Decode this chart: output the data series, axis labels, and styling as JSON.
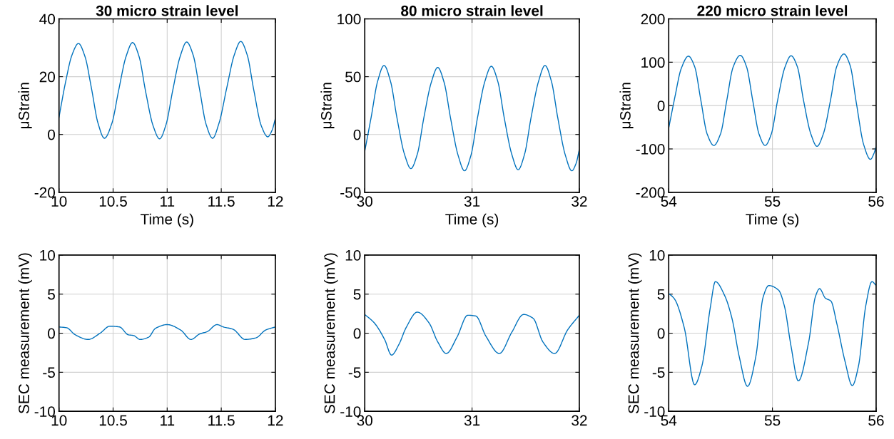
{
  "chart_data": [
    {
      "type": "line",
      "title": "30 micro strain level",
      "xlabel": "Time (s)",
      "ylabel": "μStrain",
      "xlim": [
        10,
        12
      ],
      "ylim": [
        -20,
        40
      ],
      "xticks": [
        10,
        10.5,
        11,
        11.5,
        12
      ],
      "yticks": [
        -20,
        0,
        20,
        40
      ],
      "grid": true,
      "series": [
        {
          "color": "#0072bd",
          "x": [
            10.0,
            10.06,
            10.12,
            10.18,
            10.24,
            10.3,
            10.36,
            10.42,
            10.49,
            10.55,
            10.62,
            10.68,
            10.74,
            10.8,
            10.87,
            10.93,
            10.99,
            11.05,
            11.12,
            11.18,
            11.24,
            11.3,
            11.36,
            11.42,
            11.48,
            11.55,
            11.62,
            11.68,
            11.74,
            11.8,
            11.87,
            11.93,
            11.97,
            12.0
          ],
          "values": [
            6,
            18,
            27.5,
            31.5,
            27,
            16,
            4,
            -1.3,
            4,
            15,
            27,
            31.8,
            27,
            15,
            3,
            -1.5,
            3.5,
            15,
            27,
            32,
            27.5,
            15.5,
            3.5,
            -1.3,
            4,
            16,
            27.5,
            32.2,
            27.5,
            15.5,
            3,
            -0.8,
            1.5,
            5.5
          ]
        }
      ]
    },
    {
      "type": "line",
      "title": "80 micro strain level",
      "xlabel": "Time (s)",
      "ylabel": "μStrain",
      "xlim": [
        30,
        32
      ],
      "ylim": [
        -50,
        100
      ],
      "xticks": [
        30,
        31,
        32
      ],
      "yticks": [
        -50,
        0,
        50,
        100
      ],
      "grid": true,
      "series": [
        {
          "color": "#0072bd",
          "x": [
            30.0,
            30.06,
            30.12,
            30.18,
            30.24,
            30.3,
            30.37,
            30.43,
            30.49,
            30.55,
            30.62,
            30.68,
            30.74,
            30.8,
            30.87,
            30.93,
            30.99,
            31.05,
            31.12,
            31.18,
            31.24,
            31.3,
            31.37,
            31.43,
            31.49,
            31.55,
            31.62,
            31.68,
            31.74,
            31.8,
            31.87,
            31.93,
            31.97,
            32.0
          ],
          "values": [
            -14.5,
            15,
            46,
            59.7,
            46,
            14.5,
            -17,
            -29.5,
            -17,
            14,
            45,
            58,
            45,
            14,
            -18,
            -31.4,
            -18,
            14,
            46,
            59,
            46,
            14.5,
            -17,
            -30.5,
            -17,
            14.5,
            46,
            59.7,
            46,
            14,
            -18,
            -31.4,
            -25,
            -13
          ]
        }
      ]
    },
    {
      "type": "line",
      "title": "220 micro strain level",
      "xlabel": "Time (s)",
      "ylabel": "μStrain",
      "xlim": [
        54,
        56
      ],
      "ylim": [
        -200,
        200
      ],
      "xticks": [
        54,
        55,
        56
      ],
      "yticks": [
        -200,
        -100,
        0,
        100,
        200
      ],
      "grid": true,
      "series": [
        {
          "color": "#0072bd",
          "x": [
            54.0,
            54.06,
            54.12,
            54.19,
            54.25,
            54.31,
            54.37,
            54.435,
            54.5,
            54.56,
            54.62,
            54.69,
            54.75,
            54.81,
            54.87,
            54.93,
            54.99,
            55.05,
            55.12,
            55.18,
            55.24,
            55.3,
            55.37,
            55.43,
            55.49,
            55.56,
            55.62,
            55.69,
            55.75,
            55.81,
            55.88,
            55.945,
            55.98,
            56.0
          ],
          "values": [
            -52,
            20,
            85,
            114,
            90,
            12,
            -65,
            -92,
            -65,
            12,
            88,
            116,
            90,
            12,
            -65,
            -92,
            -65,
            12,
            88,
            115,
            90,
            12,
            -65,
            -94,
            -66,
            12,
            90,
            119,
            92,
            5,
            -90,
            -124,
            -110,
            -94
          ]
        }
      ]
    },
    {
      "type": "line",
      "ylabel": "SEC measurement (mV)",
      "xlim": [
        10,
        12
      ],
      "ylim": [
        -10,
        10
      ],
      "xticks": [
        10,
        10.5,
        11,
        11.5,
        12
      ],
      "yticks": [
        -10,
        -5,
        0,
        5,
        10
      ],
      "grid": true,
      "series": [
        {
          "color": "#0072bd",
          "x": [
            10.0,
            10.07,
            10.15,
            10.27,
            10.38,
            10.47,
            10.56,
            10.64,
            10.69,
            10.75,
            10.83,
            10.89,
            11.0,
            11.125,
            11.22,
            11.3,
            11.37,
            11.46,
            11.52,
            11.61,
            11.72,
            11.82,
            11.91,
            12.0
          ],
          "values": [
            0.8,
            0.7,
            -0.2,
            -0.8,
            0,
            0.9,
            0.8,
            -0.2,
            -0.3,
            -0.8,
            -0.5,
            0.6,
            1.1,
            0.4,
            -0.8,
            -0.1,
            0.2,
            1.1,
            0.8,
            0.5,
            -0.8,
            -0.6,
            0.4,
            0.8
          ]
        }
      ]
    },
    {
      "type": "line",
      "ylabel": "SEC measurement (mV)",
      "xlim": [
        30,
        32
      ],
      "ylim": [
        -10,
        10
      ],
      "xticks": [
        30,
        31,
        32
      ],
      "yticks": [
        -10,
        -5,
        0,
        5,
        10
      ],
      "grid": true,
      "series": [
        {
          "color": "#0072bd",
          "x": [
            30.0,
            30.09,
            30.185,
            30.25,
            30.32,
            30.385,
            30.49,
            30.6,
            30.68,
            30.76,
            30.86,
            30.96,
            31.035,
            31.13,
            31.255,
            31.37,
            31.48,
            31.57,
            31.66,
            31.77,
            31.89,
            32.0
          ],
          "values": [
            2.4,
            1.3,
            -0.8,
            -2.8,
            -1.4,
            0.7,
            2.7,
            1.3,
            -1.1,
            -2.6,
            -0.5,
            2.3,
            2.2,
            -0.4,
            -2.6,
            0.1,
            2.4,
            1.9,
            -1.1,
            -2.6,
            0.4,
            2.3
          ]
        }
      ]
    },
    {
      "type": "line",
      "ylabel": "SEC measurement (mV)",
      "xlim": [
        54,
        56
      ],
      "ylim": [
        -10,
        10
      ],
      "xticks": [
        54,
        55,
        56
      ],
      "yticks": [
        -10,
        -5,
        0,
        5,
        10
      ],
      "grid": true,
      "series": [
        {
          "color": "#0072bd",
          "x": [
            54.0,
            54.055,
            54.15,
            54.25,
            54.32,
            54.4,
            54.45,
            54.54,
            54.61,
            54.68,
            54.76,
            54.84,
            54.91,
            54.965,
            55.06,
            55.115,
            55.18,
            55.25,
            55.35,
            55.415,
            55.455,
            55.51,
            55.565,
            55.62,
            55.7,
            55.77,
            55.83,
            55.9,
            55.96,
            56.0
          ],
          "values": [
            5.1,
            4.4,
            0.7,
            -6.6,
            -4.2,
            3.2,
            6.6,
            4.8,
            1.9,
            -3.0,
            -6.8,
            -3.0,
            4.6,
            6.1,
            5.5,
            3.5,
            -1.7,
            -6.1,
            -1.1,
            4.7,
            5.7,
            4.5,
            4.1,
            1.3,
            -3.6,
            -6.7,
            -4.2,
            3.5,
            6.6,
            6.1
          ]
        }
      ]
    }
  ]
}
